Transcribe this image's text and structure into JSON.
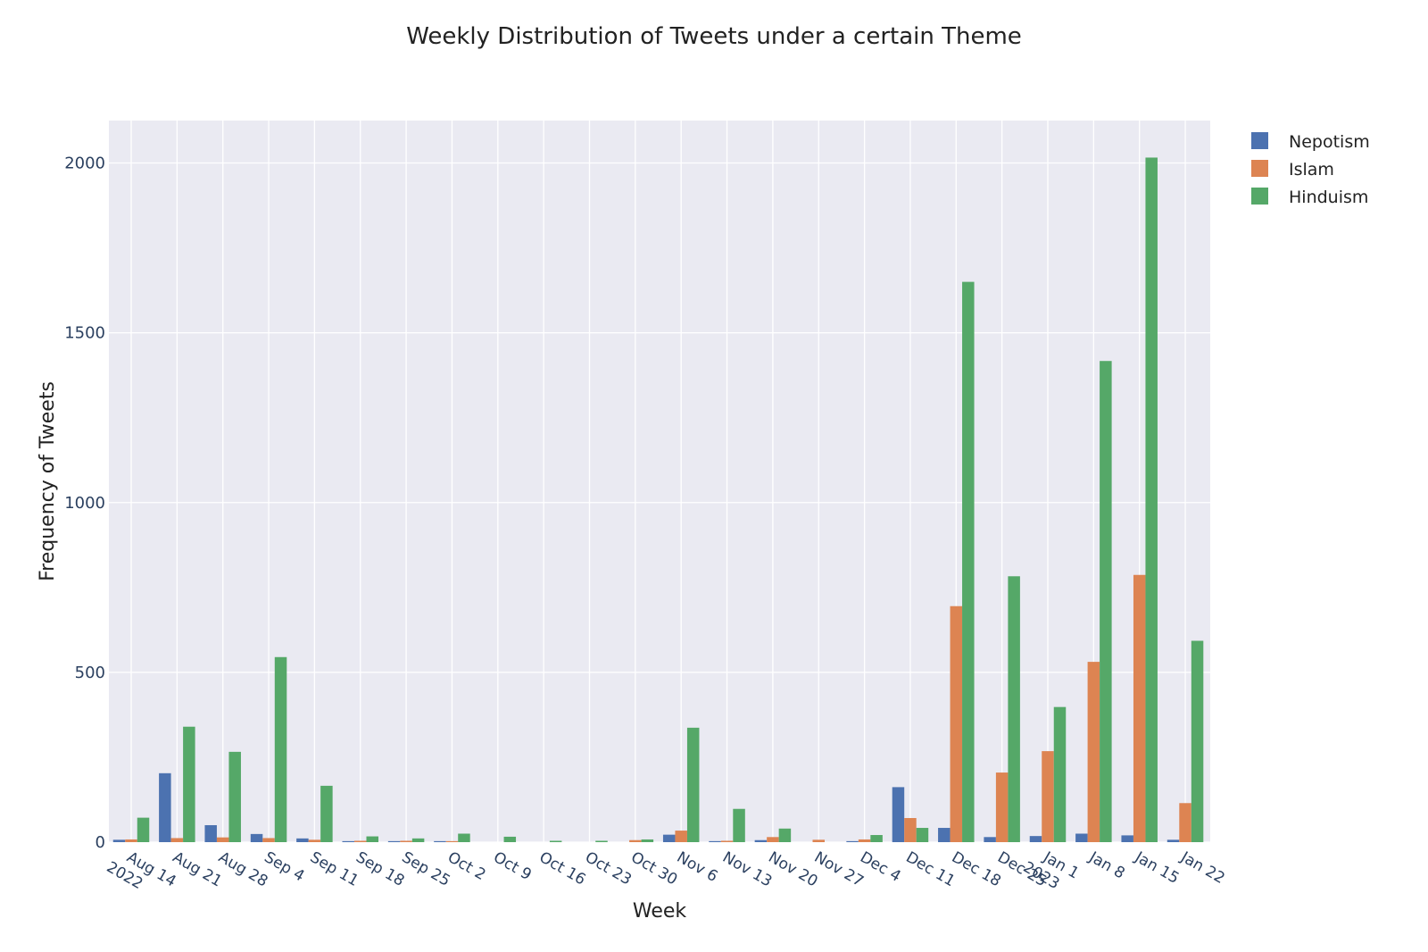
{
  "chart_data": {
    "type": "bar",
    "title": "Weekly Distribution of Tweets under a certain Theme",
    "xlabel": "Week",
    "ylabel": "Frequency of Tweets",
    "ylim": [
      0,
      2125
    ],
    "yticks": [
      0,
      500,
      1000,
      1500,
      2000
    ],
    "grid": true,
    "legend_position": "top-right",
    "categories": [
      "2022-08-14",
      "2022-08-21",
      "2022-08-28",
      "2022-09-04",
      "2022-09-11",
      "2022-09-18",
      "2022-09-25",
      "2022-10-02",
      "2022-10-09",
      "2022-10-16",
      "2022-10-23",
      "2022-10-30",
      "2022-11-06",
      "2022-11-13",
      "2022-11-20",
      "2022-11-27",
      "2022-12-04",
      "2022-12-11",
      "2022-12-18",
      "2022-12-25",
      "2023-01-01",
      "2023-01-08",
      "2023-01-15",
      "2023-01-22"
    ],
    "tick_labels": [
      "Aug 14\n2022",
      "Aug 21",
      "Aug 28",
      "Sep 4",
      "Sep 11",
      "Sep 18",
      "Sep 25",
      "Oct 2",
      "Oct 9",
      "Oct 16",
      "Oct 23",
      "Oct 30",
      "Nov 6",
      "Nov 13",
      "Nov 20",
      "Nov 27",
      "Dec 4",
      "Dec 11",
      "Dec 18",
      "Dec 25",
      "Jan 1\n2023",
      "Jan 8",
      "Jan 15",
      "Jan 22"
    ],
    "series": [
      {
        "name": "Nepotism",
        "color": "#4c72b0",
        "values": [
          7,
          203,
          50,
          24,
          11,
          3,
          3,
          3,
          0,
          0,
          0,
          0,
          22,
          3,
          6,
          0,
          3,
          162,
          42,
          15,
          18,
          25,
          20,
          7
        ]
      },
      {
        "name": "Islam",
        "color": "#dd8452",
        "values": [
          8,
          12,
          14,
          12,
          7,
          4,
          4,
          3,
          0,
          0,
          0,
          6,
          34,
          4,
          15,
          7,
          8,
          71,
          695,
          205,
          268,
          531,
          787,
          115
        ]
      },
      {
        "name": "Hinduism",
        "color": "#55a868",
        "values": [
          72,
          340,
          266,
          545,
          166,
          17,
          11,
          25,
          16,
          4,
          4,
          8,
          337,
          98,
          40,
          0,
          21,
          42,
          1650,
          783,
          398,
          1417,
          2016,
          593
        ]
      }
    ]
  }
}
